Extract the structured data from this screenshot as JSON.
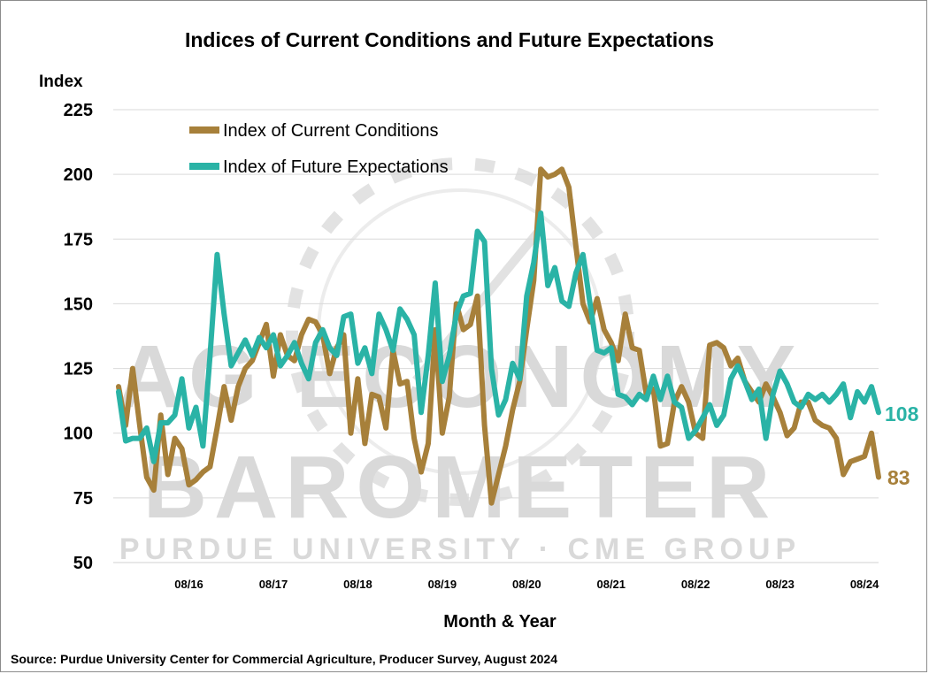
{
  "chart_data": {
    "type": "line",
    "title": "Indices of Current Conditions and Future Expectations",
    "ylabel": "Index",
    "xlabel": "Month & Year",
    "ylim": [
      50,
      225
    ],
    "yticks": [
      50,
      75,
      100,
      125,
      150,
      175,
      200,
      225
    ],
    "xticks": [
      "08/16",
      "08/17",
      "08/18",
      "08/19",
      "08/20",
      "08/21",
      "08/22",
      "08/23",
      "08/24"
    ],
    "x_start": "10/15",
    "x_end": "08/24",
    "grid": "horizontal",
    "legend_position": "top-left",
    "source": "Source: Purdue University Center for Commercial Agriculture, Producer Survey, August 2024",
    "watermark": {
      "line1": "AG ECONOMY",
      "line2": "BAROMETER",
      "line3": "PURDUE UNIVERSITY  ·  CME GROUP"
    },
    "series": [
      {
        "name": "Index of Current Conditions",
        "color": "#a7803a",
        "end_label": "83",
        "values": [
          118,
          103,
          125,
          103,
          83,
          78,
          107,
          84,
          98,
          94,
          80,
          82,
          85,
          87,
          102,
          118,
          105,
          118,
          125,
          128,
          135,
          142,
          122,
          138,
          130,
          128,
          138,
          144,
          143,
          138,
          123,
          133,
          138,
          100,
          121,
          96,
          115,
          114,
          102,
          132,
          119,
          120,
          98,
          85,
          96,
          140,
          100,
          114,
          150,
          140,
          142,
          153,
          103,
          73,
          84,
          95,
          109,
          120,
          140,
          159,
          202,
          199,
          200,
          202,
          195,
          172,
          150,
          143,
          152,
          140,
          135,
          128,
          146,
          133,
          132,
          115,
          117,
          95,
          96,
          112,
          118,
          112,
          100,
          98,
          134,
          135,
          133,
          126,
          129,
          120,
          116,
          112,
          119,
          114,
          108,
          99,
          102,
          112,
          112,
          105,
          103,
          102,
          98,
          84,
          89,
          90,
          91,
          100,
          83
        ]
      },
      {
        "name": "Index of Future Expectations",
        "color": "#2ab3a6",
        "end_label": "108",
        "values": [
          116,
          97,
          98,
          98,
          102,
          89,
          104,
          104,
          107,
          121,
          102,
          110,
          95,
          130,
          169,
          146,
          126,
          131,
          136,
          130,
          137,
          133,
          138,
          126,
          130,
          135,
          127,
          121,
          135,
          140,
          133,
          130,
          145,
          146,
          127,
          133,
          123,
          146,
          140,
          132,
          148,
          144,
          138,
          108,
          130,
          158,
          120,
          130,
          146,
          153,
          154,
          178,
          174,
          125,
          107,
          113,
          127,
          121,
          153,
          166,
          185,
          157,
          164,
          151,
          149,
          162,
          169,
          150,
          132,
          131,
          133,
          115,
          114,
          111,
          115,
          113,
          122,
          113,
          122,
          112,
          110,
          98,
          101,
          106,
          111,
          103,
          107,
          121,
          126,
          120,
          113,
          117,
          98,
          115,
          124,
          119,
          112,
          110,
          115,
          113,
          115,
          112,
          115,
          119,
          106,
          116,
          112,
          118,
          108
        ]
      }
    ]
  }
}
